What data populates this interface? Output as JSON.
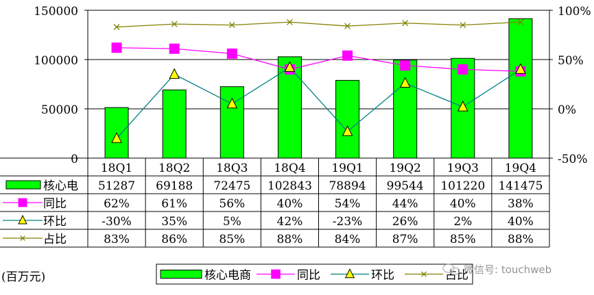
{
  "chart_data": {
    "type": "bar",
    "categories": [
      "18Q1",
      "18Q2",
      "18Q3",
      "18Q4",
      "19Q1",
      "19Q2",
      "19Q3",
      "19Q4"
    ],
    "ylim_left": [
      0,
      150000
    ],
    "left_ticks": [
      "150000",
      "100000",
      "50000",
      "0"
    ],
    "ylim_right": [
      -50,
      100
    ],
    "right_ticks": [
      "100%",
      "50%",
      "0%",
      "-50%"
    ],
    "unit_label": "(百万元)",
    "grid": true,
    "legend_position": "bottom",
    "series": [
      {
        "name": "核心电商",
        "table_name": "核心电",
        "type": "bar",
        "axis": "left",
        "color": "#00ff00",
        "values": [
          51287,
          69188,
          72475,
          102843,
          78894,
          99544,
          101220,
          141475
        ],
        "labels": [
          "51287",
          "69188",
          "72475",
          "102843",
          "78894",
          "99544",
          "101220",
          "141475"
        ]
      },
      {
        "name": "同比",
        "table_name": "同比",
        "type": "line",
        "axis": "right",
        "color": "#ff00ff",
        "marker": "square",
        "values": [
          62,
          61,
          56,
          40,
          54,
          44,
          40,
          38
        ],
        "labels": [
          "62%",
          "61%",
          "56%",
          "40%",
          "54%",
          "44%",
          "40%",
          "38%"
        ]
      },
      {
        "name": "环比",
        "table_name": "环比",
        "type": "line",
        "axis": "right",
        "color": "#008080",
        "marker": "triangle",
        "values": [
          -30,
          35,
          5,
          42,
          -23,
          26,
          2,
          40
        ],
        "labels": [
          "-30%",
          "35%",
          "5%",
          "42%",
          "-23%",
          "26%",
          "2%",
          "40%"
        ]
      },
      {
        "name": "占比",
        "table_name": "占比",
        "type": "line",
        "axis": "right",
        "color": "#808000",
        "marker": "x",
        "values": [
          83,
          86,
          85,
          88,
          84,
          87,
          85,
          88
        ],
        "labels": [
          "83%",
          "86%",
          "85%",
          "88%",
          "84%",
          "87%",
          "85%",
          "88%"
        ]
      }
    ]
  },
  "watermark": "微信号: touchweb"
}
